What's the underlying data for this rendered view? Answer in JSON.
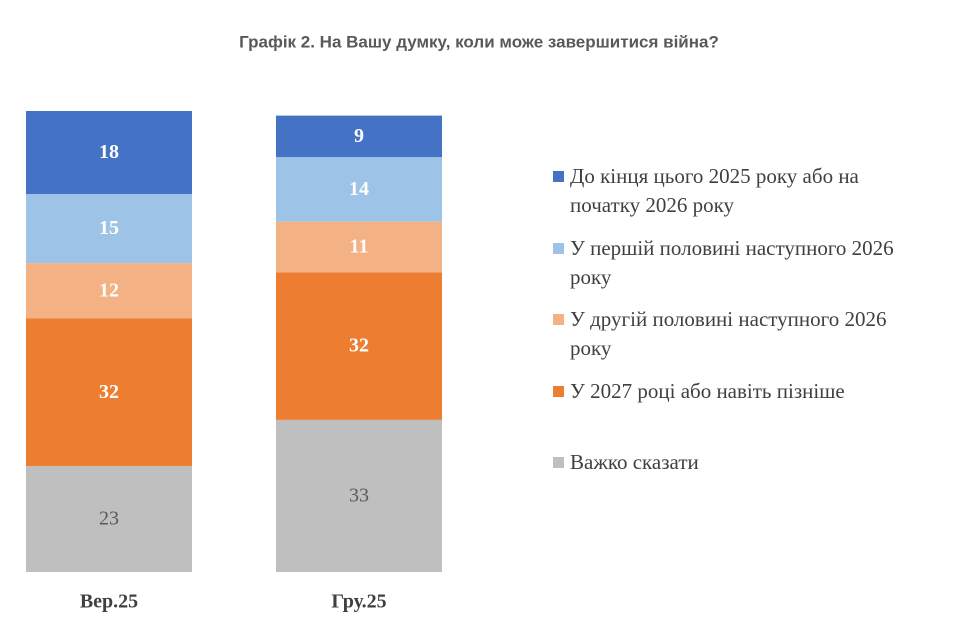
{
  "chart_data": {
    "type": "stacked_bar",
    "title": "Графік 2. На Вашу думку, коли може завершитися війна?",
    "categories": [
      "Вер.25",
      "Гру.25"
    ],
    "ylim": [
      0,
      100
    ],
    "series": [
      {
        "name": "До кінця цього 2025 року або на початку 2026 року",
        "color": "#4472c4",
        "label_color": "#ffffff",
        "label_bold": true,
        "values": [
          18,
          9
        ]
      },
      {
        "name": "У першій половині наступного 2026 року",
        "color": "#9dc3e6",
        "label_color": "#ffffff",
        "label_bold": true,
        "values": [
          15,
          14
        ]
      },
      {
        "name": "У другій половині наступного 2026 року",
        "color": "#f4b183",
        "label_color": "#ffffff",
        "label_bold": true,
        "values": [
          12,
          11
        ]
      },
      {
        "name": "У 2027 році або навіть пізніше",
        "color": "#ed7d31",
        "label_color": "#ffffff",
        "label_bold": true,
        "values": [
          32,
          32
        ]
      },
      {
        "name": "Важко сказати",
        "color": "#bfbfbf",
        "label_color": "#595959",
        "label_bold": false,
        "values": [
          23,
          33
        ]
      }
    ]
  }
}
